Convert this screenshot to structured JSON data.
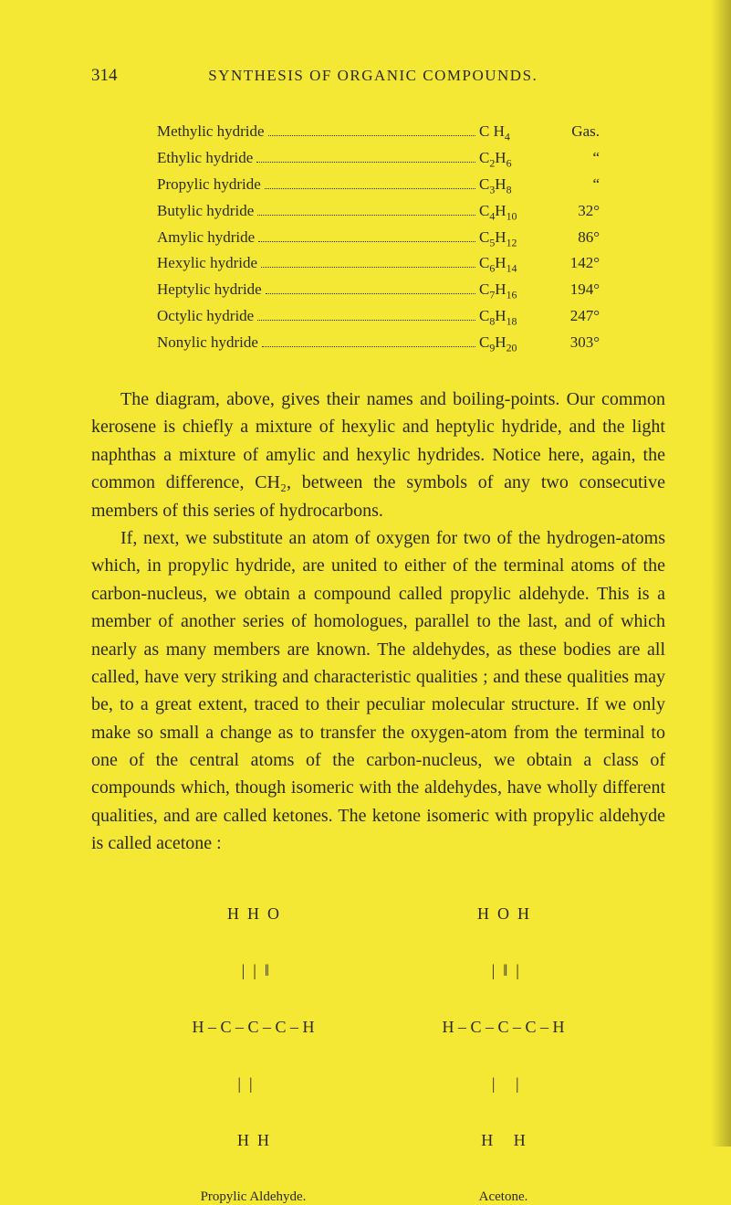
{
  "page_number": "314",
  "page_title": "SYNTHESIS OF ORGANIC COMPOUNDS.",
  "hydride_rows": [
    {
      "name": "Methylic hydride",
      "formula_base": "C H",
      "formula_sub": "4",
      "formula_pre": "",
      "value": "Gas."
    },
    {
      "name": "Ethylic hydride",
      "formula_base": "C",
      "formula_sub": "2",
      "formula_post": "H",
      "formula_sub2": "6",
      "value": "“"
    },
    {
      "name": "Propylic hydride",
      "formula_base": "C",
      "formula_sub": "3",
      "formula_post": "H",
      "formula_sub2": "8",
      "value": "“"
    },
    {
      "name": "Butylic hydride",
      "formula_base": "C",
      "formula_sub": "4",
      "formula_post": "H",
      "formula_sub2": "10",
      "value": "32°"
    },
    {
      "name": "Amylic hydride",
      "formula_base": "C",
      "formula_sub": "5",
      "formula_post": "H",
      "formula_sub2": "12",
      "value": "86°"
    },
    {
      "name": "Hexylic hydride",
      "formula_base": "C",
      "formula_sub": "6",
      "formula_post": "H",
      "formula_sub2": "14",
      "value": "142°"
    },
    {
      "name": "Heptylic hydride",
      "formula_base": "C",
      "formula_sub": "7",
      "formula_post": "H",
      "formula_sub2": "16",
      "value": "194°"
    },
    {
      "name": "Octylic hydride",
      "formula_base": "C",
      "formula_sub": "8",
      "formula_post": "H",
      "formula_sub2": "18",
      "value": "247°"
    },
    {
      "name": "Nonylic hydride",
      "formula_base": "C",
      "formula_sub": "9",
      "formula_post": "H",
      "formula_sub2": "20",
      "value": "303°"
    }
  ],
  "para1": "The diagram, above, gives their names and boiling-points. Our common kerosene is chiefly a mixture of hexylic and heptylic hydride, and the light naphthas a mixture of amylic and hexylic hydrides. Notice here, again, the common difference, CH₂, between the symbols of any two consecutive members of this series of hydrocarbons.",
  "para2": "If, next, we substitute an atom of oxygen for two of the hydrogen-atoms which, in propylic hydride, are united to either of the terminal atoms of the carbon-nucleus, we obtain a compound called propylic aldehyde. This is a member of another series of homologues, parallel to the last, and of which nearly as many members are known. The aldehydes, as these bodies are all called, have very striking and characteristic qualities ; and these qualities may be, to a great extent, traced to their peculiar molecular structure. If we only make so small a change as to transfer the oxygen-atom from the terminal to one of the central atoms of the carbon-nucleus, we obtain a class of compounds which, though isomeric with the aldehydes, have wholly different qualities, and are called ketones. The ketone isomeric with propylic aldehyde is called acetone :",
  "struct1_l1": "H  H  O",
  "struct1_l2": " |  |  ‖",
  "struct1_l3": "H – C – C – C – H",
  "struct1_l4": " |  |     ",
  "struct1_l5": "H  H",
  "struct1_label": "Propylic Aldehyde.",
  "struct2_l1": "H  O  H",
  "struct2_l2": " |  ‖  |",
  "struct2_l3": "H – C – C – C – H",
  "struct2_l4": " |     |",
  "struct2_l5": "H     H",
  "struct2_label": "Acetone."
}
